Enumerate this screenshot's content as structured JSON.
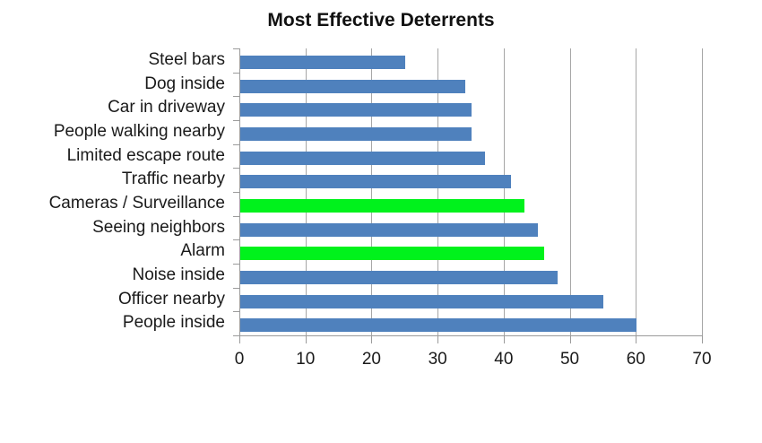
{
  "chart_data": {
    "type": "bar",
    "orientation": "horizontal",
    "title": "Most Effective Deterrents",
    "categories": [
      "Steel bars",
      "Dog inside",
      "Car in driveway",
      "People walking nearby",
      "Limited escape route",
      "Traffic nearby",
      "Cameras / Surveillance",
      "Seeing neighbors",
      "Alarm",
      "Noise inside",
      "Officer nearby",
      "People inside"
    ],
    "values": [
      25,
      34,
      35,
      35,
      37,
      41,
      43,
      45,
      46,
      48,
      55,
      60
    ],
    "bar_colors": [
      "#4f81bd",
      "#4f81bd",
      "#4f81bd",
      "#4f81bd",
      "#4f81bd",
      "#4f81bd",
      "#00f21c",
      "#4f81bd",
      "#00f21c",
      "#4f81bd",
      "#4f81bd",
      "#4f81bd"
    ],
    "highlighted_categories": [
      "Cameras / Surveillance",
      "Alarm"
    ],
    "xlabel": "",
    "ylabel": "",
    "xlim": [
      0,
      70
    ],
    "x_ticks": [
      0,
      10,
      20,
      30,
      40,
      50,
      60,
      70
    ],
    "grid": "vertical",
    "legend": "none",
    "colors": {
      "bar_blue": "#4f81bd",
      "bar_green": "#00f21c",
      "gridline": "#a6a6a6",
      "axis": "#9b9b9b",
      "title_text": "#111111",
      "label_text": "#1a1a1a",
      "background": "#ffffff"
    }
  }
}
